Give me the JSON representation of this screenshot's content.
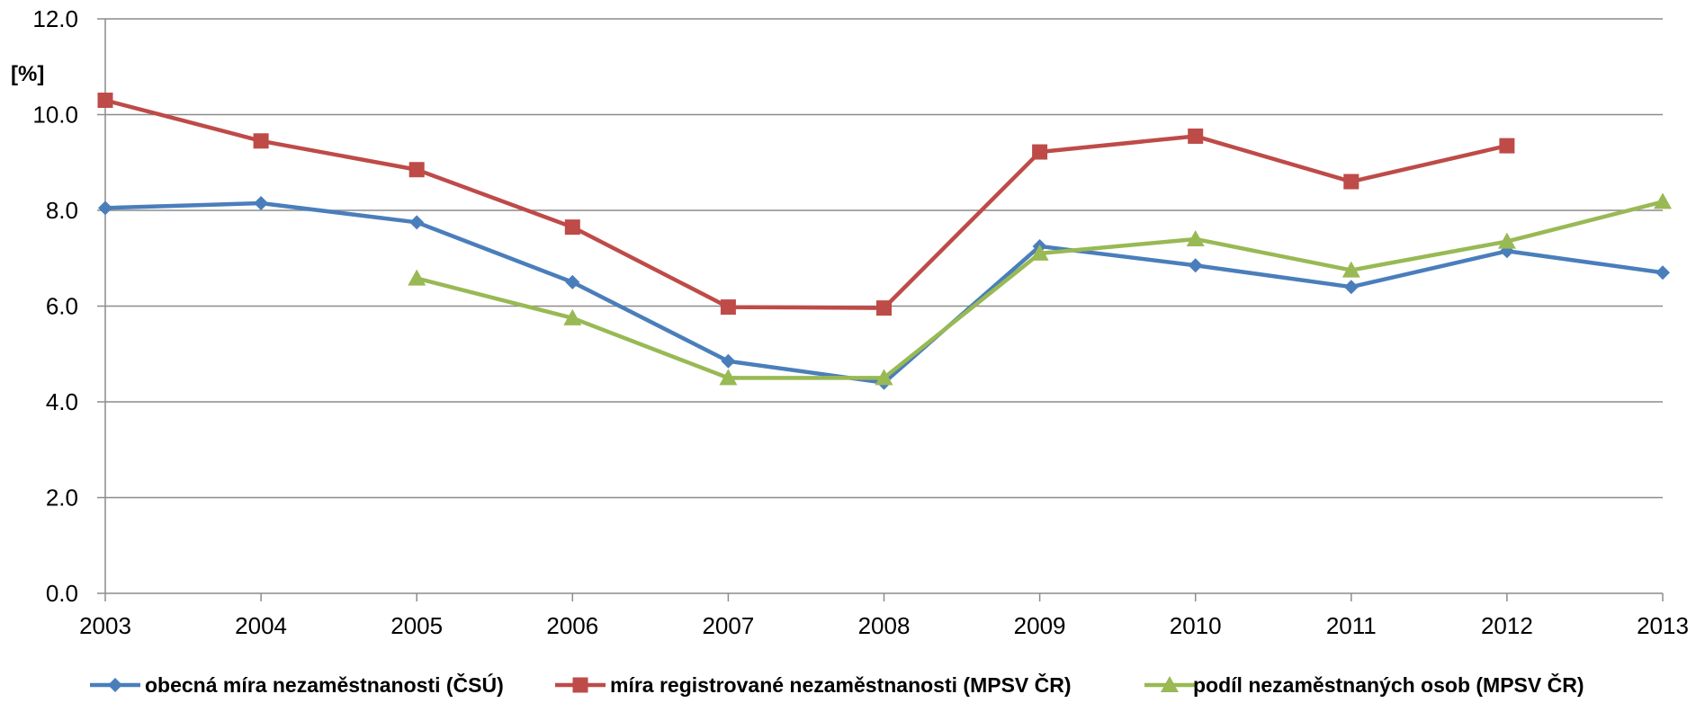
{
  "chart_data": {
    "type": "line",
    "title": "",
    "xlabel": "",
    "ylabel": "[%]",
    "x": [
      "2003",
      "2004",
      "2005",
      "2006",
      "2007",
      "2008",
      "2009",
      "2010",
      "2011",
      "2012",
      "2013"
    ],
    "ylim": [
      0,
      12
    ],
    "yticks": [
      "0.0",
      "2.0",
      "4.0",
      "6.0",
      "8.0",
      "10.0",
      "12.0"
    ],
    "grid": "horizontal",
    "legend_position": "bottom",
    "series": [
      {
        "name": "obecná míra nezaměstnanosti (ČSÚ)",
        "marker": "diamond",
        "color": "#4a7ebb",
        "values": [
          8.05,
          8.15,
          7.75,
          6.5,
          4.85,
          4.4,
          7.25,
          6.85,
          6.4,
          7.15,
          6.7
        ]
      },
      {
        "name": "míra registrované nezaměstnanosti (MPSV ČR)",
        "marker": "square",
        "color": "#be4b48",
        "values": [
          10.3,
          9.45,
          8.85,
          7.65,
          5.98,
          5.96,
          9.22,
          9.55,
          8.6,
          9.35,
          null
        ]
      },
      {
        "name": "podíl nezaměstnaných osob (MPSV ČR)",
        "marker": "triangle",
        "color": "#98b954",
        "values": [
          null,
          null,
          6.58,
          5.75,
          4.5,
          4.5,
          7.1,
          7.4,
          6.75,
          7.35,
          8.18
        ]
      }
    ]
  }
}
